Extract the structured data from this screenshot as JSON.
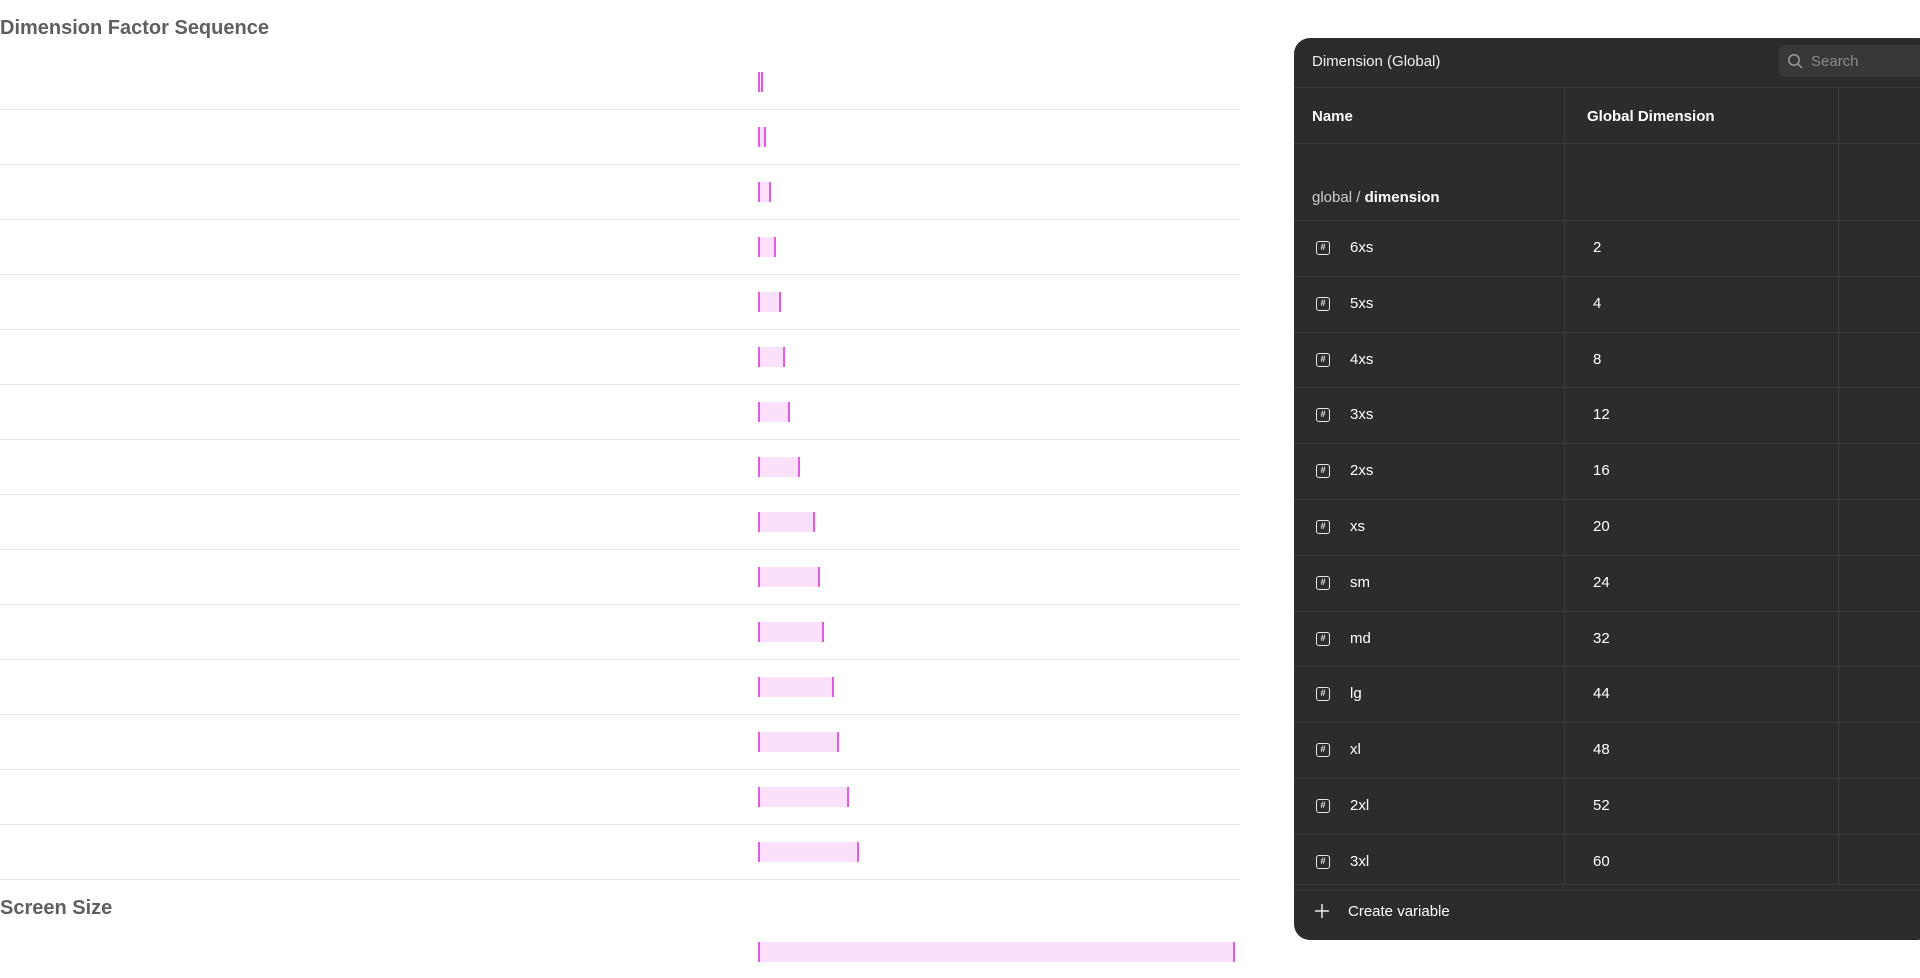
{
  "sections": {
    "dimension_title": "Dimension Factor Sequence",
    "screen_title": "Screen Size"
  },
  "dimension_bars": [
    2,
    4,
    8,
    12,
    16,
    20,
    24,
    32,
    44,
    48,
    52,
    60,
    64,
    72,
    80
  ],
  "screen_bar": 480,
  "panel": {
    "title": "Dimension (Global)",
    "search_placeholder": "Search",
    "columns": {
      "name": "Name",
      "global": "Global Dimension"
    },
    "group": {
      "prefix": "global",
      "separator": " / ",
      "name": "dimension"
    },
    "variables": [
      {
        "name": "6xs",
        "value": "2"
      },
      {
        "name": "5xs",
        "value": "4"
      },
      {
        "name": "4xs",
        "value": "8"
      },
      {
        "name": "3xs",
        "value": "12"
      },
      {
        "name": "2xs",
        "value": "16"
      },
      {
        "name": "xs",
        "value": "20"
      },
      {
        "name": "sm",
        "value": "24"
      },
      {
        "name": "md",
        "value": "32"
      },
      {
        "name": "lg",
        "value": "44"
      },
      {
        "name": "xl",
        "value": "48"
      },
      {
        "name": "2xl",
        "value": "52"
      },
      {
        "name": "3xl",
        "value": "60"
      }
    ],
    "create_label": "Create variable",
    "icons": {
      "search": "search-icon",
      "variable": "number-variable-icon",
      "create": "plus-icon"
    }
  },
  "colors": {
    "bar_fill": "#fbe0fb",
    "bar_edge": "#e05cde",
    "panel_bg": "#2c2c2c"
  }
}
